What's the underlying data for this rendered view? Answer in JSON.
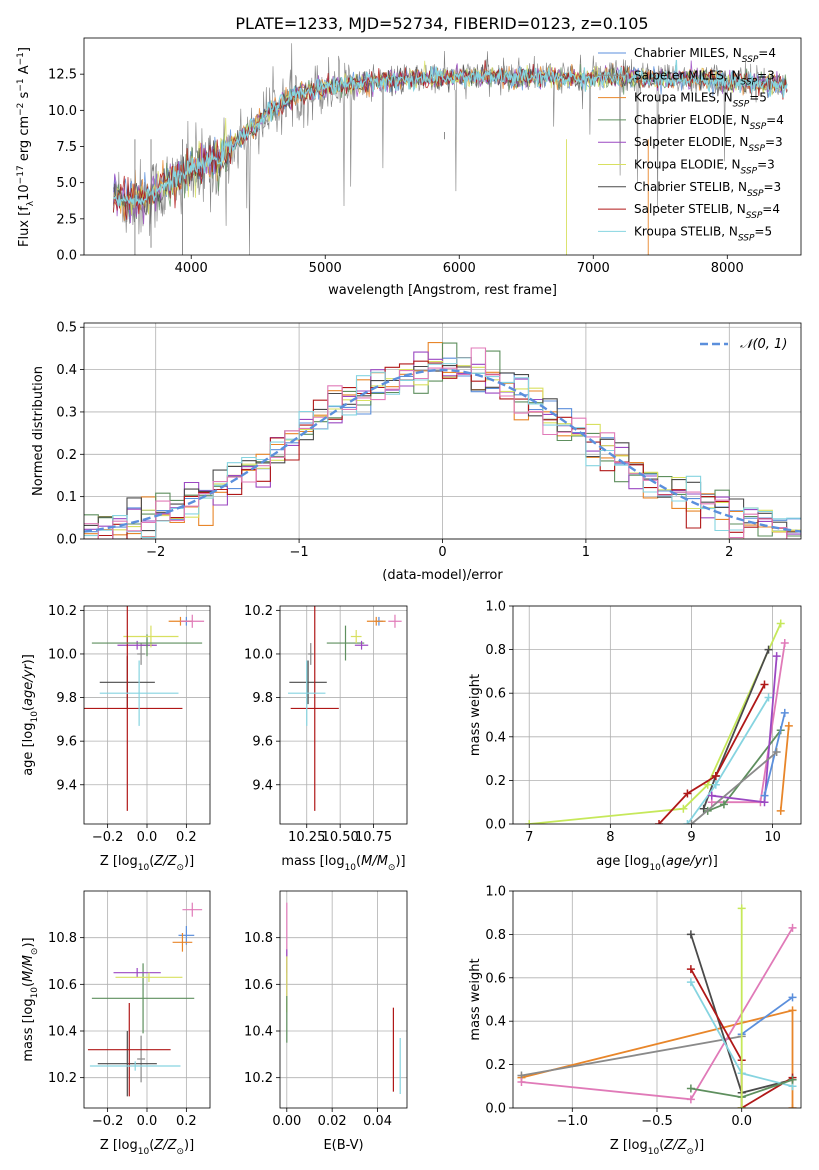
{
  "figure_title": "PLATE=1233, MJD=52734, FIBERID=0123, z=0.105",
  "colors": {
    "Chabrier MILES": "#5b8fdc",
    "Salpeter MILES": "#8a8a8a",
    "Kroupa MILES": "#e8862a",
    "Chabrier ELODIE": "#5e8f5e",
    "Salpeter ELODIE": "#9b48c2",
    "Kroupa ELODIE": "#d8e060",
    "Chabrier STELIB": "#4a4a4a",
    "Salpeter STELIB": "#b01818",
    "Kroupa STELIB": "#86d4e0",
    "pink": "#e07ab8",
    "lime": "#c6e85a",
    "normal": "#5b8fdc"
  },
  "chart_data": [
    {
      "id": "spectrum",
      "type": "line",
      "title": "PLATE=1233, MJD=52734, FIBERID=0123, z=0.105",
      "xlabel": "wavelength [Angstrom, rest frame]",
      "ylabel": "Flux [f",
      "xlim": [
        3200,
        8550
      ],
      "ylim": [
        0,
        15
      ],
      "xticks": [
        "4000",
        "5000",
        "6000",
        "7000",
        "8000"
      ],
      "yticks": [
        "0.0",
        "2.5",
        "5.0",
        "7.5",
        "10.0",
        "12.5"
      ],
      "legend_position": "right",
      "legend": [
        {
          "name": "Chabrier MILES",
          "nssp": "4"
        },
        {
          "name": "Salpeter MILES",
          "nssp": "3"
        },
        {
          "name": "Kroupa MILES",
          "nssp": "5"
        },
        {
          "name": "Chabrier ELODIE",
          "nssp": "4"
        },
        {
          "name": "Salpeter ELODIE",
          "nssp": "3"
        },
        {
          "name": "Kroupa ELODIE",
          "nssp": "3"
        },
        {
          "name": "Chabrier STELIB",
          "nssp": "3"
        },
        {
          "name": "Salpeter STELIB",
          "nssp": "4"
        },
        {
          "name": "Kroupa STELIB",
          "nssp": "5"
        }
      ],
      "observed": {
        "x": [
          3450,
          3600,
          3800,
          4000,
          4200,
          4400,
          4600,
          4800,
          5000,
          5200,
          5400,
          5600,
          5800,
          6000,
          6200,
          6400,
          6600,
          6800,
          7000,
          7200,
          7400,
          7600,
          7800,
          8000,
          8200,
          8400
        ],
        "y": [
          3.8,
          3.7,
          4.6,
          5.7,
          6.6,
          8.2,
          10.0,
          11.1,
          11.6,
          11.9,
          12.1,
          12.1,
          12.3,
          12.3,
          12.4,
          12.3,
          12.4,
          12.3,
          12.3,
          12.4,
          12.2,
          12.3,
          12.3,
          12.1,
          12.0,
          11.8
        ]
      },
      "model": {
        "x": [
          3400,
          3600,
          3800,
          4000,
          4200,
          4400,
          4600,
          4800,
          5000,
          5200,
          5400,
          5600,
          5800,
          6000,
          6200,
          6400,
          6600,
          6800,
          7000,
          7200,
          7400,
          7600,
          7800,
          8000,
          8200,
          8400
        ],
        "y": [
          3.9,
          3.8,
          4.8,
          5.9,
          6.7,
          8.3,
          10.1,
          11.2,
          11.6,
          11.9,
          12.0,
          12.1,
          12.2,
          12.3,
          12.3,
          12.3,
          12.3,
          12.2,
          12.2,
          12.3,
          12.1,
          12.2,
          12.2,
          12.0,
          11.9,
          11.7
        ]
      }
    },
    {
      "id": "residuals",
      "type": "step",
      "xlabel": "(data-model)/error",
      "ylabel": "Normed distribution",
      "xlim": [
        -2.5,
        2.5
      ],
      "ylim": [
        0,
        0.51
      ],
      "xticks": [
        "−2",
        "−1",
        "0",
        "1",
        "2"
      ],
      "yticks": [
        "0.0",
        "0.1",
        "0.2",
        "0.3",
        "0.4",
        "0.5"
      ],
      "legend_position": "top-right",
      "legend_label": "𝒩(0, 1)"
    },
    {
      "id": "age-vs-Z",
      "type": "errorbar",
      "xlabel": "Z [log",
      "ylabel": "age  [log",
      "xlim": [
        -0.32,
        0.32
      ],
      "ylim": [
        9.22,
        10.22
      ],
      "xticks": [
        "−0.2",
        "0.0",
        "0.2"
      ],
      "yticks": [
        "9.4",
        "9.6",
        "9.8",
        "10.0",
        "10.2"
      ],
      "points": [
        {
          "series": "Chabrier MILES",
          "x": 0.2,
          "y": 10.15,
          "xerr": 0.03,
          "yerr": 0.02
        },
        {
          "series": "Salpeter MILES",
          "x": -0.03,
          "y": 10.0,
          "xerr": 0.02,
          "yerr": 0.05
        },
        {
          "series": "Kroupa MILES",
          "x": 0.17,
          "y": 10.15,
          "xerr": 0.06,
          "yerr": 0.02
        },
        {
          "series": "Chabrier ELODIE",
          "x": 0.0,
          "y": 10.04,
          "xerr": 0.03,
          "yerr": 0.05
        },
        {
          "series": "Salpeter ELODIE",
          "x": -0.05,
          "y": 10.04,
          "xerr": 0.1,
          "yerr": 0.02
        },
        {
          "series": "Kroupa ELODIE",
          "x": 0.02,
          "y": 10.08,
          "xerr": 0.14,
          "yerr": 0.05
        },
        {
          "series": "Chabrier STELIB",
          "x": -0.1,
          "y": 9.87,
          "xerr": 0.14,
          "yerr": 0.12
        },
        {
          "series": "Salpeter STELIB",
          "x": -0.1,
          "y": 9.75,
          "xerr": 0.28,
          "yerr": 0.47
        },
        {
          "series": "Kroupa STELIB",
          "x": -0.04,
          "y": 9.82,
          "xerr": 0.2,
          "yerr": 0.15
        },
        {
          "series": "pink",
          "x": 0.23,
          "y": 10.15,
          "xerr": 0.06,
          "yerr": 0.03
        },
        {
          "series": "Chabrier ELODIE",
          "x": 0.0,
          "y": 10.05,
          "xerr": 0.28,
          "yerr": 0.02
        }
      ]
    },
    {
      "id": "age-vs-mass",
      "type": "errorbar",
      "xlabel": "mass [log",
      "ylabel": "",
      "xlim": [
        10.05,
        11.0
      ],
      "ylim": [
        9.22,
        10.22
      ],
      "xticks": [
        "10.25",
        "10.50",
        "10.75"
      ],
      "yticks": [
        "9.4",
        "9.6",
        "9.8",
        "10.0",
        "10.2"
      ],
      "points": [
        {
          "series": "Chabrier MILES",
          "x": 10.79,
          "y": 10.15,
          "xerr": 0.03,
          "yerr": 0.02
        },
        {
          "series": "Salpeter MILES",
          "x": 10.28,
          "y": 10.0,
          "xerr": 0.02,
          "yerr": 0.05
        },
        {
          "series": "Kroupa MILES",
          "x": 10.77,
          "y": 10.15,
          "xerr": 0.07,
          "yerr": 0.02
        },
        {
          "series": "Chabrier ELODIE",
          "x": 10.54,
          "y": 10.05,
          "xerr": 0.14,
          "yerr": 0.08
        },
        {
          "series": "Salpeter ELODIE",
          "x": 10.66,
          "y": 10.04,
          "xerr": 0.05,
          "yerr": 0.02
        },
        {
          "series": "Kroupa ELODIE",
          "x": 10.62,
          "y": 10.08,
          "xerr": 0.04,
          "yerr": 0.03
        },
        {
          "series": "Chabrier STELIB",
          "x": 10.26,
          "y": 9.87,
          "xerr": 0.14,
          "yerr": 0.1
        },
        {
          "series": "Salpeter STELIB",
          "x": 10.31,
          "y": 9.75,
          "xerr": 0.18,
          "yerr": 0.47
        },
        {
          "series": "Kroupa STELIB",
          "x": 10.25,
          "y": 9.82,
          "xerr": 0.14,
          "yerr": 0.15
        },
        {
          "series": "pink",
          "x": 10.91,
          "y": 10.15,
          "xerr": 0.05,
          "yerr": 0.03
        }
      ]
    },
    {
      "id": "mass-weight-vs-age",
      "type": "line",
      "xlabel": "age  [log",
      "ylabel": "mass weight",
      "xlim": [
        6.8,
        10.35
      ],
      "ylim": [
        0,
        1
      ],
      "xticks": [
        "7",
        "8",
        "9",
        "10"
      ],
      "yticks": [
        "0.0",
        "0.2",
        "0.4",
        "0.6",
        "0.8",
        "1.0"
      ],
      "series": [
        {
          "name": "lime",
          "x": [
            7.0,
            8.9,
            9.2,
            10.1
          ],
          "y": [
            0.0,
            0.07,
            0.18,
            0.92
          ]
        },
        {
          "name": "Chabrier STELIB",
          "x": [
            9.15,
            9.3,
            9.95
          ],
          "y": [
            0.07,
            0.22,
            0.8
          ]
        },
        {
          "name": "Salpeter STELIB",
          "x": [
            8.6,
            8.95,
            9.3,
            9.9
          ],
          "y": [
            0.0,
            0.14,
            0.22,
            0.64
          ]
        },
        {
          "name": "pink",
          "x": [
            9.25,
            9.85,
            10.15
          ],
          "y": [
            0.1,
            0.1,
            0.83
          ]
        },
        {
          "name": "Chabrier ELODIE",
          "x": [
            9.2,
            9.4,
            10.1
          ],
          "y": [
            0.06,
            0.09,
            0.43
          ]
        },
        {
          "name": "Kroupa STELIB",
          "x": [
            8.95,
            9.3,
            9.95
          ],
          "y": [
            0.0,
            0.18,
            0.58
          ]
        },
        {
          "name": "Salpeter ELODIE",
          "x": [
            9.25,
            9.9,
            10.05
          ],
          "y": [
            0.13,
            0.1,
            0.77
          ]
        },
        {
          "name": "Chabrier MILES",
          "x": [
            9.9,
            10.15
          ],
          "y": [
            0.13,
            0.51
          ]
        },
        {
          "name": "Kroupa MILES",
          "x": [
            10.1,
            10.2
          ],
          "y": [
            0.06,
            0.45
          ]
        },
        {
          "name": "Salpeter MILES",
          "x": [
            9.0,
            10.05
          ],
          "y": [
            0.0,
            0.33
          ]
        }
      ]
    },
    {
      "id": "mass-vs-Z",
      "type": "errorbar",
      "xlabel": "Z [log",
      "ylabel": "mass [log",
      "xlim": [
        -0.32,
        0.32
      ],
      "ylim": [
        10.07,
        11.0
      ],
      "xticks": [
        "−0.2",
        "0.0",
        "0.2"
      ],
      "yticks": [
        "10.2",
        "10.4",
        "10.6",
        "10.8"
      ],
      "points": [
        {
          "series": "Chabrier MILES",
          "x": 0.2,
          "y": 10.81,
          "xerr": 0.04,
          "yerr": 0.04
        },
        {
          "series": "Salpeter MILES",
          "x": -0.03,
          "y": 10.28,
          "xerr": 0.02,
          "yerr": 0.1
        },
        {
          "series": "Kroupa MILES",
          "x": 0.18,
          "y": 10.78,
          "xerr": 0.05,
          "yerr": 0.04
        },
        {
          "series": "Chabrier ELODIE",
          "x": -0.02,
          "y": 10.54,
          "xerr": 0.26,
          "yerr": 0.15
        },
        {
          "series": "Salpeter ELODIE",
          "x": -0.05,
          "y": 10.65,
          "xerr": 0.12,
          "yerr": 0.02
        },
        {
          "series": "Kroupa ELODIE",
          "x": 0.01,
          "y": 10.63,
          "xerr": 0.17,
          "yerr": 0.02
        },
        {
          "series": "Chabrier STELIB",
          "x": -0.1,
          "y": 10.26,
          "xerr": 0.15,
          "yerr": 0.14
        },
        {
          "series": "Salpeter STELIB",
          "x": -0.09,
          "y": 10.32,
          "xerr": 0.21,
          "yerr": 0.2
        },
        {
          "series": "Kroupa STELIB",
          "x": -0.06,
          "y": 10.25,
          "xerr": 0.23,
          "yerr": 0.02
        },
        {
          "series": "pink",
          "x": 0.23,
          "y": 10.92,
          "xerr": 0.05,
          "yerr": 0.03
        }
      ]
    },
    {
      "id": "mass-vs-EBV",
      "type": "errorbar",
      "xlabel": "E(B-V)",
      "ylabel": "",
      "xlim": [
        -0.003,
        0.053
      ],
      "ylim": [
        10.07,
        11.0
      ],
      "xticks": [
        "0.00",
        "0.02",
        "0.04"
      ],
      "yticks": [
        "10.2",
        "10.4",
        "10.6",
        "10.8"
      ],
      "points": [
        {
          "series": "pink",
          "x": 0.0,
          "y": 10.8,
          "xerr": 0.0,
          "yerr": 0.15
        },
        {
          "series": "Salpeter ELODIE",
          "x": 0.0,
          "y": 10.65,
          "xerr": 0.0,
          "yerr": 0.1
        },
        {
          "series": "Kroupa ELODIE",
          "x": 0.0,
          "y": 10.6,
          "xerr": 0.0,
          "yerr": 0.12
        },
        {
          "series": "Chabrier ELODIE",
          "x": 0.0,
          "y": 10.45,
          "xerr": 0.0,
          "yerr": 0.1
        },
        {
          "series": "Salpeter STELIB",
          "x": 0.047,
          "y": 10.32,
          "xerr": 0.0,
          "yerr": 0.18
        },
        {
          "series": "Kroupa STELIB",
          "x": 0.05,
          "y": 10.25,
          "xerr": 0.0,
          "yerr": 0.12
        }
      ]
    },
    {
      "id": "mass-weight-vs-Z",
      "type": "line",
      "xlabel": "Z [log",
      "ylabel": "mass weight",
      "xlim": [
        -1.35,
        0.35
      ],
      "ylim": [
        0,
        1
      ],
      "xticks": [
        "−1.0",
        "−0.5",
        "0.0"
      ],
      "yticks": [
        "0.0",
        "0.2",
        "0.4",
        "0.6",
        "0.8",
        "1.0"
      ],
      "series": [
        {
          "name": "Kroupa MILES",
          "x": [
            -1.3,
            0.3,
            0.3
          ],
          "y": [
            0.14,
            0.45,
            0.0
          ]
        },
        {
          "name": "Salpeter MILES",
          "x": [
            -1.3,
            0.0
          ],
          "y": [
            0.15,
            0.33
          ]
        },
        {
          "name": "pink",
          "x": [
            -1.3,
            -0.3,
            0.3
          ],
          "y": [
            0.12,
            0.04,
            0.83
          ]
        },
        {
          "name": "Chabrier MILES",
          "x": [
            0.0,
            0.3
          ],
          "y": [
            0.34,
            0.51
          ]
        },
        {
          "name": "Chabrier STELIB",
          "x": [
            -0.3,
            0.0,
            0.3
          ],
          "y": [
            0.8,
            0.07,
            0.13
          ]
        },
        {
          "name": "Salpeter STELIB",
          "x": [
            -0.3,
            0.0,
            0.0,
            0.3
          ],
          "y": [
            0.64,
            0.22,
            0.0,
            0.14
          ]
        },
        {
          "name": "Kroupa STELIB",
          "x": [
            -0.3,
            0.0,
            0.3
          ],
          "y": [
            0.58,
            0.16,
            0.1
          ]
        },
        {
          "name": "Chabrier ELODIE",
          "x": [
            -0.3,
            0.0,
            0.3
          ],
          "y": [
            0.09,
            0.05,
            0.13
          ]
        },
        {
          "name": "lime",
          "x": [
            0.0,
            0.0
          ],
          "y": [
            0.92,
            0.0
          ]
        }
      ]
    }
  ]
}
